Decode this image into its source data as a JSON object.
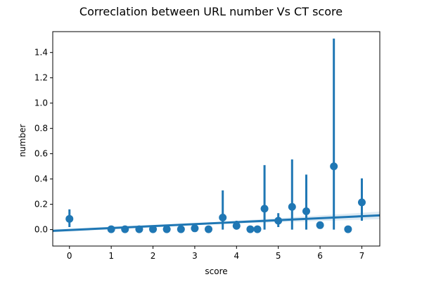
{
  "chart_data": {
    "type": "scatter",
    "title": "Correclation between URL number Vs CT score",
    "xlabel": "score",
    "ylabel": "number",
    "xlim": [
      -0.4,
      7.43
    ],
    "ylim": [
      -0.13,
      1.565
    ],
    "x_ticks": [
      0,
      1,
      2,
      3,
      4,
      5,
      6,
      7
    ],
    "y_ticks": [
      0.0,
      0.2,
      0.4,
      0.6,
      0.8,
      1.0,
      1.2,
      1.4
    ],
    "x_tick_labels": [
      "0",
      "1",
      "2",
      "3",
      "4",
      "5",
      "6",
      "7"
    ],
    "y_tick_labels": [
      "0.0",
      "0.2",
      "0.4",
      "0.6",
      "0.8",
      "1.0",
      "1.2",
      "1.4"
    ],
    "grid": false,
    "legend": "none",
    "color": "#1f77b4",
    "points": [
      {
        "x": 0.0,
        "y": 0.085,
        "lo": 0.02,
        "hi": 0.16
      },
      {
        "x": 1.0,
        "y": 0.003,
        "lo": 0.0,
        "hi": 0.006
      },
      {
        "x": 1.33,
        "y": 0.003,
        "lo": 0.0,
        "hi": 0.006
      },
      {
        "x": 1.67,
        "y": 0.003,
        "lo": 0.0,
        "hi": 0.006
      },
      {
        "x": 2.0,
        "y": 0.003,
        "lo": 0.0,
        "hi": 0.006
      },
      {
        "x": 2.33,
        "y": 0.003,
        "lo": 0.0,
        "hi": 0.006
      },
      {
        "x": 2.67,
        "y": 0.003,
        "lo": 0.0,
        "hi": 0.006
      },
      {
        "x": 3.0,
        "y": 0.01,
        "lo": 0.0,
        "hi": 0.02
      },
      {
        "x": 3.33,
        "y": 0.003,
        "lo": 0.0,
        "hi": 0.006
      },
      {
        "x": 3.67,
        "y": 0.095,
        "lo": 0.0,
        "hi": 0.31
      },
      {
        "x": 4.0,
        "y": 0.03,
        "lo": 0.0,
        "hi": 0.07
      },
      {
        "x": 4.33,
        "y": 0.003,
        "lo": 0.0,
        "hi": 0.006
      },
      {
        "x": 4.5,
        "y": 0.003,
        "lo": 0.0,
        "hi": 0.006
      },
      {
        "x": 4.67,
        "y": 0.165,
        "lo": 0.0,
        "hi": 0.51
      },
      {
        "x": 5.0,
        "y": 0.07,
        "lo": 0.02,
        "hi": 0.13
      },
      {
        "x": 5.33,
        "y": 0.18,
        "lo": 0.0,
        "hi": 0.555
      },
      {
        "x": 5.67,
        "y": 0.145,
        "lo": 0.0,
        "hi": 0.435
      },
      {
        "x": 6.0,
        "y": 0.035,
        "lo": 0.02,
        "hi": 0.05
      },
      {
        "x": 6.33,
        "y": 0.5,
        "lo": 0.0,
        "hi": 1.51
      },
      {
        "x": 6.67,
        "y": 0.003,
        "lo": 0.0,
        "hi": 0.006
      },
      {
        "x": 7.0,
        "y": 0.215,
        "lo": 0.07,
        "hi": 0.405
      }
    ],
    "regression": {
      "intercept": -0.0035,
      "slope": 0.0156,
      "ci_half_width_at_xmin": 0.012,
      "ci_half_width_at_center": 0.008,
      "ci_half_width_at_xmax": 0.03
    }
  }
}
